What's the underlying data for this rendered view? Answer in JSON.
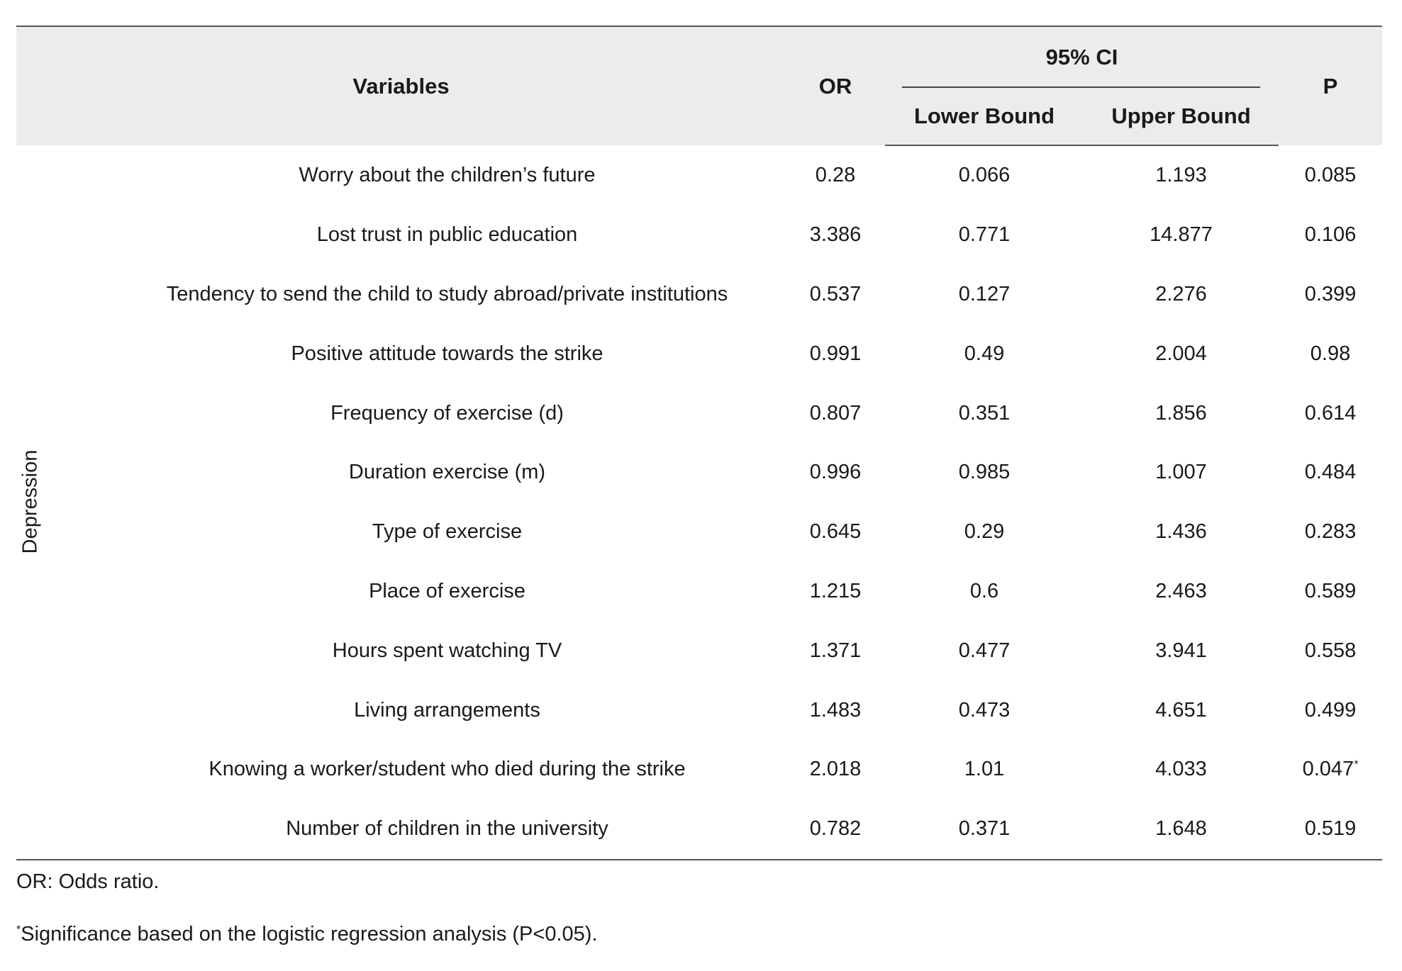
{
  "table": {
    "headers": {
      "variables": "Variables",
      "or": "OR",
      "ci": "95% CI",
      "lower": "Lower Bound",
      "upper": "Upper Bound",
      "p": "P"
    },
    "group_label": "Depression",
    "rows": [
      {
        "variable": "Worry about the children’s future",
        "or": "0.28",
        "lower": "0.066",
        "upper": "1.193",
        "p": "0.085",
        "sig": ""
      },
      {
        "variable": "Lost trust in public education",
        "or": "3.386",
        "lower": "0.771",
        "upper": "14.877",
        "p": "0.106",
        "sig": ""
      },
      {
        "variable": "Tendency to send the child to study abroad/private institutions",
        "or": "0.537",
        "lower": "0.127",
        "upper": "2.276",
        "p": "0.399",
        "sig": ""
      },
      {
        "variable": "Positive attitude towards the strike",
        "or": "0.991",
        "lower": "0.49",
        "upper": "2.004",
        "p": "0.98",
        "sig": ""
      },
      {
        "variable": "Frequency of exercise (d)",
        "or": "0.807",
        "lower": "0.351",
        "upper": "1.856",
        "p": "0.614",
        "sig": ""
      },
      {
        "variable": "Duration exercise (m)",
        "or": "0.996",
        "lower": "0.985",
        "upper": "1.007",
        "p": "0.484",
        "sig": ""
      },
      {
        "variable": "Type of exercise",
        "or": "0.645",
        "lower": "0.29",
        "upper": "1.436",
        "p": "0.283",
        "sig": ""
      },
      {
        "variable": "Place of exercise",
        "or": "1.215",
        "lower": "0.6",
        "upper": "2.463",
        "p": "0.589",
        "sig": ""
      },
      {
        "variable": "Hours spent watching TV",
        "or": "1.371",
        "lower": "0.477",
        "upper": "3.941",
        "p": "0.558",
        "sig": ""
      },
      {
        "variable": "Living arrangements",
        "or": "1.483",
        "lower": "0.473",
        "upper": "4.651",
        "p": "0.499",
        "sig": ""
      },
      {
        "variable": "Knowing a worker/student who died during the strike",
        "or": "2.018",
        "lower": "1.01",
        "upper": "4.033",
        "p": "0.047",
        "sig": "*"
      },
      {
        "variable": "Number of children in the university",
        "or": "0.782",
        "lower": "0.371",
        "upper": "1.648",
        "p": "0.519",
        "sig": ""
      }
    ]
  },
  "footnotes": {
    "or_note": "OR: Odds ratio.",
    "sig_marker": "*",
    "sig_note": "Significance based on the logistic regression analysis (P<0.05)."
  }
}
